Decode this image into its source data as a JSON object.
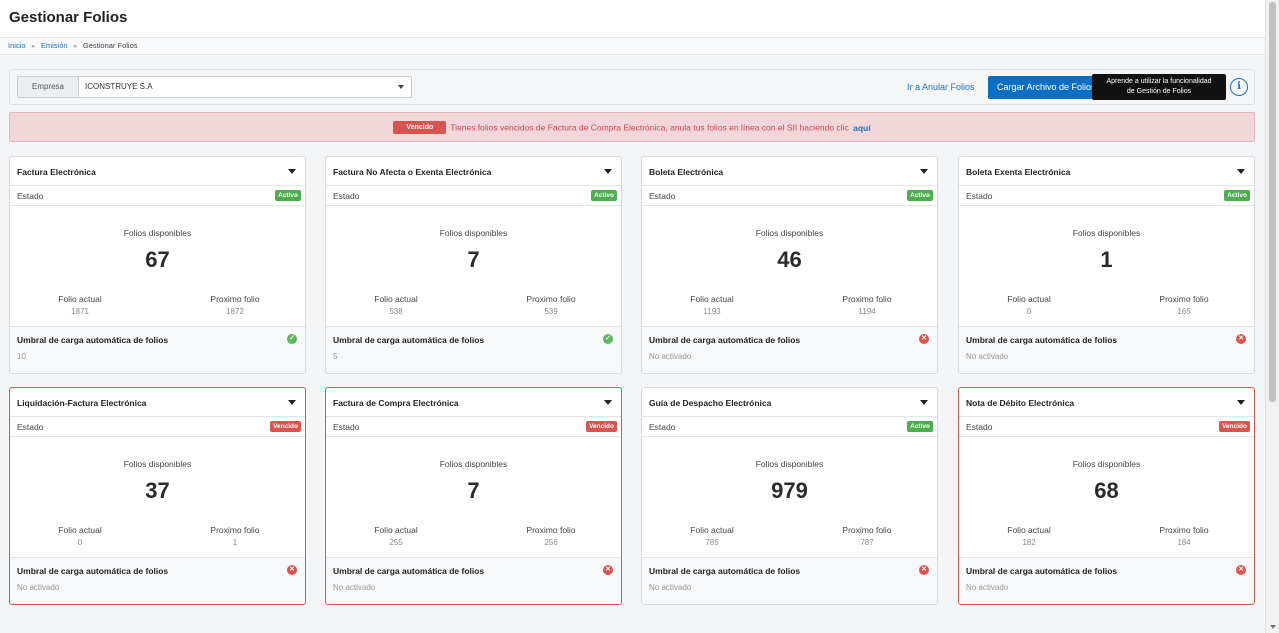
{
  "header": {
    "title": "Gestionar Folios"
  },
  "breadcrumb": {
    "items": [
      "Inicio",
      "Emisión"
    ],
    "separator": "»",
    "current": "Gestionar Folios"
  },
  "toolbar": {
    "company_label": "Empresa",
    "company_value": "ICONSTRUYE S.A",
    "anular_link": "Ir a Anular Folios",
    "upload_button": "Cargar Archivo de Folios",
    "tooltip_line1": "Aprende a utilizar la funcionalidad",
    "tooltip_line2": "de Gestión de Folios",
    "info_icon": "i"
  },
  "alert": {
    "badge": "Vencido",
    "text": "Tienes folios vencidos de Factura de Compra Electrónica, anula tus folios en línea con el SII haciendo clic",
    "link": "aquí"
  },
  "labels": {
    "estado": "Estado",
    "folios_disponibles": "Folios disponibles",
    "folio_actual": "Folio actual",
    "proximo_folio": "Proximo folio",
    "umbral": "Umbral de carga automática de folios"
  },
  "cards": [
    {
      "title": "Factura Electrónica",
      "status": "Activo",
      "available": "67",
      "current": "1871",
      "next": "1872",
      "threshold": "10"
    },
    {
      "title": "Factura No Afecta o Exenta Electrónica",
      "status": "Activo",
      "available": "7",
      "current": "538",
      "next": "539",
      "threshold": "5"
    },
    {
      "title": "Boleta Electrónica",
      "status": "Activo",
      "available": "46",
      "current": "1193",
      "next": "1194",
      "threshold": "No activado"
    },
    {
      "title": "Boleta Exenta Electrónica",
      "status": "Activo",
      "available": "1",
      "current": "0",
      "next": "165",
      "threshold": "No activado"
    },
    {
      "title": "Liquidación-Factura Electrónica",
      "status": "Vencido",
      "available": "37",
      "current": "0",
      "next": "1",
      "threshold": "No activado"
    },
    {
      "title": "Factura de Compra Electrónica",
      "status": "Vencido",
      "available": "7",
      "current": "255",
      "next": "256",
      "threshold": "No activado"
    },
    {
      "title": "Guía de Despacho Electrónica",
      "status": "Activo",
      "available": "979",
      "current": "785",
      "next": "787",
      "threshold": "No activado"
    },
    {
      "title": "Nota de Débito Electrónica",
      "status": "Vencido",
      "available": "68",
      "current": "182",
      "next": "184",
      "threshold": "No activado"
    }
  ],
  "colors": {
    "primary": "#0a6fc2",
    "success": "#5cb85c",
    "danger": "#d9534f",
    "alert_bg": "#f2d6d9"
  }
}
